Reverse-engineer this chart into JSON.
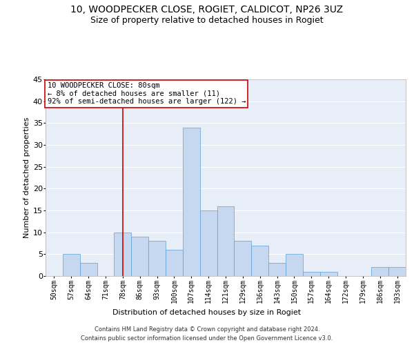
{
  "title": "10, WOODPECKER CLOSE, ROGIET, CALDICOT, NP26 3UZ",
  "subtitle": "Size of property relative to detached houses in Rogiet",
  "xlabel": "Distribution of detached houses by size in Rogiet",
  "ylabel": "Number of detached properties",
  "bar_labels": [
    "50sqm",
    "57sqm",
    "64sqm",
    "71sqm",
    "78sqm",
    "86sqm",
    "93sqm",
    "100sqm",
    "107sqm",
    "114sqm",
    "121sqm",
    "129sqm",
    "136sqm",
    "143sqm",
    "150sqm",
    "157sqm",
    "164sqm",
    "172sqm",
    "179sqm",
    "186sqm",
    "193sqm"
  ],
  "bar_values": [
    0,
    5,
    3,
    0,
    10,
    9,
    8,
    6,
    34,
    15,
    16,
    8,
    7,
    3,
    5,
    1,
    1,
    0,
    0,
    2,
    2
  ],
  "bar_color": "#c5d8f0",
  "bar_edge_color": "#5a9fd4",
  "vline_x_index": 4,
  "vline_color": "#cc0000",
  "annotation_text": "10 WOODPECKER CLOSE: 80sqm\n← 8% of detached houses are smaller (11)\n92% of semi-detached houses are larger (122) →",
  "annotation_box_color": "#ffffff",
  "annotation_box_edge_color": "#cc0000",
  "ylim": [
    0,
    45
  ],
  "yticks": [
    0,
    5,
    10,
    15,
    20,
    25,
    30,
    35,
    40,
    45
  ],
  "background_color": "#e8eef7",
  "footer_line1": "Contains HM Land Registry data © Crown copyright and database right 2024.",
  "footer_line2": "Contains public sector information licensed under the Open Government Licence v3.0.",
  "title_fontsize": 10,
  "subtitle_fontsize": 9,
  "tick_fontsize": 7,
  "ylabel_fontsize": 8,
  "xlabel_fontsize": 8,
  "annotation_fontsize": 7.5
}
